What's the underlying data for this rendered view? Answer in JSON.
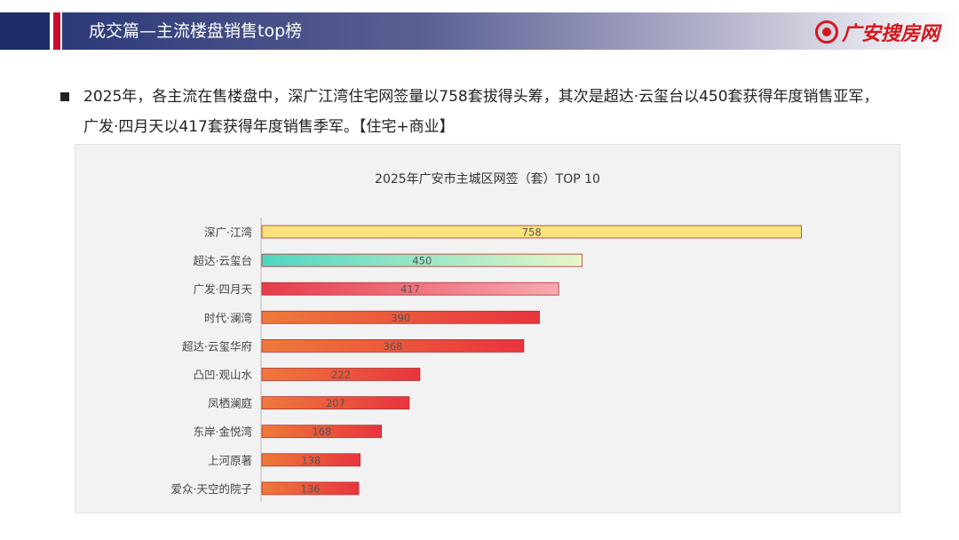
{
  "header": {
    "title": "成交篇—主流楼盘销售top榜",
    "logo_text": "广安搜房网"
  },
  "description": {
    "line1": "2025年，各主流在售楼盘中，深广江湾住宅网签量以758套拔得头筹，其次是超达·云玺台以450套获得年度销售亚军，",
    "line2": "广发·四月天以417套获得年度销售季军。【住宅+商业】"
  },
  "chart_data": {
    "type": "bar",
    "orientation": "horizontal",
    "title": "2025年广安市主城区网签（套）TOP 10",
    "categories": [
      "深广·江湾",
      "超达·云玺台",
      "广发·四月天",
      "时代·澜湾",
      "超达·云玺华府",
      "凸凹·观山水",
      "凤栖澜庭",
      "东岸·金悦湾",
      "上河原著",
      "爱众·天空的院子"
    ],
    "values": [
      758,
      450,
      417,
      390,
      368,
      222,
      207,
      168,
      138,
      136
    ],
    "xlim": [
      0,
      760
    ],
    "grid": false,
    "colors": [
      [
        "#fbe27a",
        "#fbe27a"
      ],
      [
        "#4fd6c0",
        "#e8f6c8"
      ],
      [
        "#e63b4a",
        "#f7a9b2"
      ],
      [
        "#ee7a3a",
        "#e8343e"
      ],
      [
        "#ee7a3a",
        "#e8343e"
      ],
      [
        "#ee7a3a",
        "#e8343e"
      ],
      [
        "#ee7a3a",
        "#e8343e"
      ],
      [
        "#ee7a3a",
        "#e8343e"
      ],
      [
        "#ee7a3a",
        "#e8343e"
      ],
      [
        "#ee7a3a",
        "#e8343e"
      ]
    ]
  }
}
